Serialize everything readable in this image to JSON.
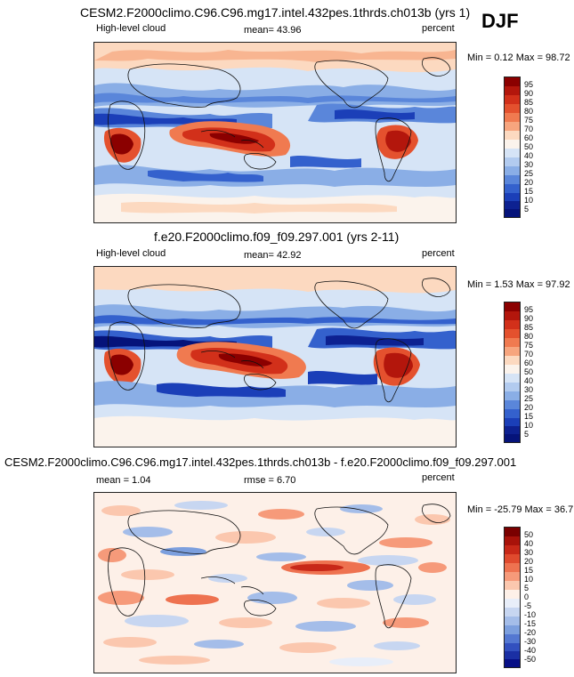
{
  "season": "DJF",
  "panels": [
    {
      "id": "top",
      "title": "CESM2.F2000climo.C96.C96.mg17.intel.432pes.1thrds.ch013b (yrs 1)",
      "left": "High-level cloud",
      "center": "mean=  43.96",
      "right": "percent",
      "minmax": "Min =   0.12 Max =  98.72",
      "levels": [
        "95",
        "90",
        "85",
        "80",
        "75",
        "70",
        "60",
        "50",
        "40",
        "30",
        "25",
        "20",
        "15",
        "10",
        "5"
      ],
      "colors": [
        "#8b0000",
        "#b3160c",
        "#d2301a",
        "#e4512e",
        "#f07a50",
        "#f7a57e",
        "#fcd9c0",
        "#fbf3ec",
        "#d6e4f6",
        "#b2cbef",
        "#8aaee6",
        "#5a86da",
        "#3461cd",
        "#1b3fb8",
        "#0d2191",
        "#05137a"
      ]
    },
    {
      "id": "middle",
      "title": "f.e20.F2000climo.f09_f09.297.001 (yrs 2-11)",
      "left": "High-level cloud",
      "center": "mean=  42.92",
      "right": "percent",
      "minmax": "Min =   1.53 Max =  97.92",
      "levels": [
        "95",
        "90",
        "85",
        "80",
        "75",
        "70",
        "60",
        "50",
        "40",
        "30",
        "25",
        "20",
        "15",
        "10",
        "5"
      ],
      "colors": [
        "#8b0000",
        "#b3160c",
        "#d2301a",
        "#e4512e",
        "#f07a50",
        "#f7a57e",
        "#fcd9c0",
        "#fbf3ec",
        "#d6e4f6",
        "#b2cbef",
        "#8aaee6",
        "#5a86da",
        "#3461cd",
        "#1b3fb8",
        "#0d2191",
        "#05137a"
      ]
    },
    {
      "id": "bottom",
      "title": "CESM2.F2000climo.C96.C96.mg17.intel.432pes.1thrds.ch013b - f.e20.F2000climo.f09_f09.297.001",
      "left": "mean =   1.04",
      "center": "rmse =   6.70",
      "right": "percent",
      "minmax": "Min = -25.79 Max =  36.71",
      "levels": [
        "50",
        "40",
        "30",
        "20",
        "15",
        "10",
        "5",
        "0",
        "-5",
        "-10",
        "-15",
        "-20",
        "-30",
        "-40",
        "-50"
      ],
      "colors": [
        "#7a0000",
        "#a8120a",
        "#c82818",
        "#e04a2e",
        "#ee7250",
        "#f69a7a",
        "#fbc7ae",
        "#fdf0e8",
        "#e8eef9",
        "#c7d6f1",
        "#a4bde9",
        "#7c9fde",
        "#5478d2",
        "#3250bf",
        "#1a2fa4",
        "#070f86"
      ]
    }
  ]
}
